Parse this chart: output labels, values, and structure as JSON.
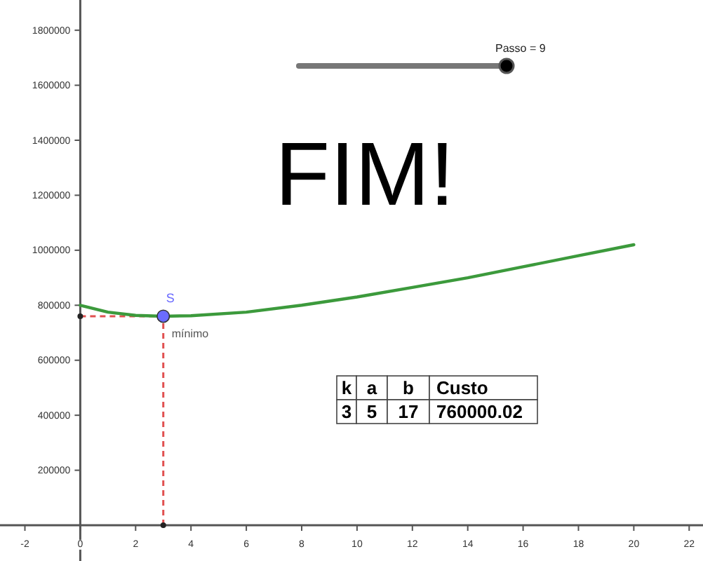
{
  "chart_data": {
    "type": "line",
    "title": "FIM!",
    "xlim": [
      -2.9,
      22.5
    ],
    "ylim": [
      -130000,
      1910000
    ],
    "xticks": [
      -2,
      0,
      2,
      4,
      6,
      8,
      10,
      12,
      14,
      16,
      18,
      20,
      22
    ],
    "yticks": [
      200000,
      400000,
      600000,
      800000,
      1000000,
      1200000,
      1400000,
      1600000,
      1800000
    ],
    "grid": false,
    "series": [
      {
        "color": "#3c9a3c",
        "x": [
          0,
          1,
          2,
          3,
          4,
          6,
          8,
          10,
          12,
          14,
          16,
          18,
          20
        ],
        "values": [
          800000,
          775000,
          763000,
          760000,
          762000,
          775000,
          800000,
          830000,
          865000,
          900000,
          940000,
          980000,
          1020000
        ]
      },
      {
        "type": "scatter",
        "name": "S",
        "color": "#6b6bff",
        "marker": "circle",
        "x": [
          3
        ],
        "values": [
          760000
        ]
      }
    ],
    "ref_lines": [
      {
        "axis": "y",
        "value": 760000,
        "color": "#e05050",
        "line_style": "dashed"
      },
      {
        "axis": "x",
        "value": 3,
        "color": "#e05050",
        "line_style": "dashed"
      }
    ],
    "annotations": [
      "Passo = 9",
      "k",
      "a",
      "b",
      "Custo",
      "3",
      "5",
      "17",
      "760000.02",
      {
        "text": "mínimo",
        "x": 3,
        "y": 760000
      }
    ]
  }
}
